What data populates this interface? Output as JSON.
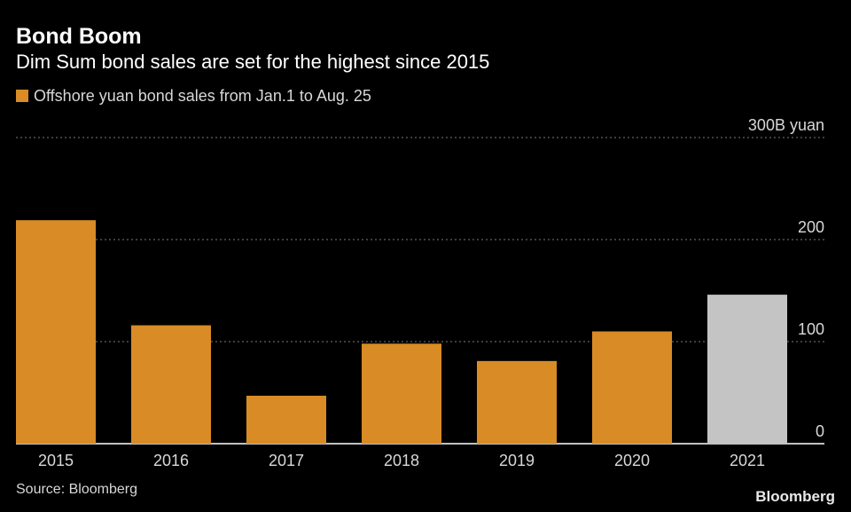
{
  "chart_data": {
    "type": "bar",
    "title": "Bond Boom",
    "subtitle": "Dim Sum bond sales are set for the highest since 2015",
    "legend": {
      "label": "Offshore yuan bond sales from Jan.1 to Aug. 25",
      "placement": "top-left"
    },
    "categories": [
      "2015",
      "2016",
      "2017",
      "2018",
      "2019",
      "2020",
      "2021"
    ],
    "values": [
      219,
      116,
      47,
      98,
      81,
      110,
      146
    ],
    "bar_colors": [
      "#d98b25",
      "#d98b25",
      "#d98b25",
      "#d98b25",
      "#d98b25",
      "#d98b25",
      "#c4c4c4"
    ],
    "ylim": [
      0,
      300
    ],
    "yticks": [
      0,
      100,
      200,
      300
    ],
    "ytick_labels": [
      "0",
      "100",
      "200",
      "300B yuan"
    ],
    "grid": true,
    "source": "Source: Bloomberg"
  },
  "branding": {
    "logo_text": "Bloomberg"
  },
  "colors": {
    "background": "#000000",
    "primary_bar": "#d98b25",
    "highlight_bar": "#c4c4c4",
    "gridline": "#7a7a7a",
    "text": "#ffffff",
    "muted_text": "#d8d8d8"
  }
}
